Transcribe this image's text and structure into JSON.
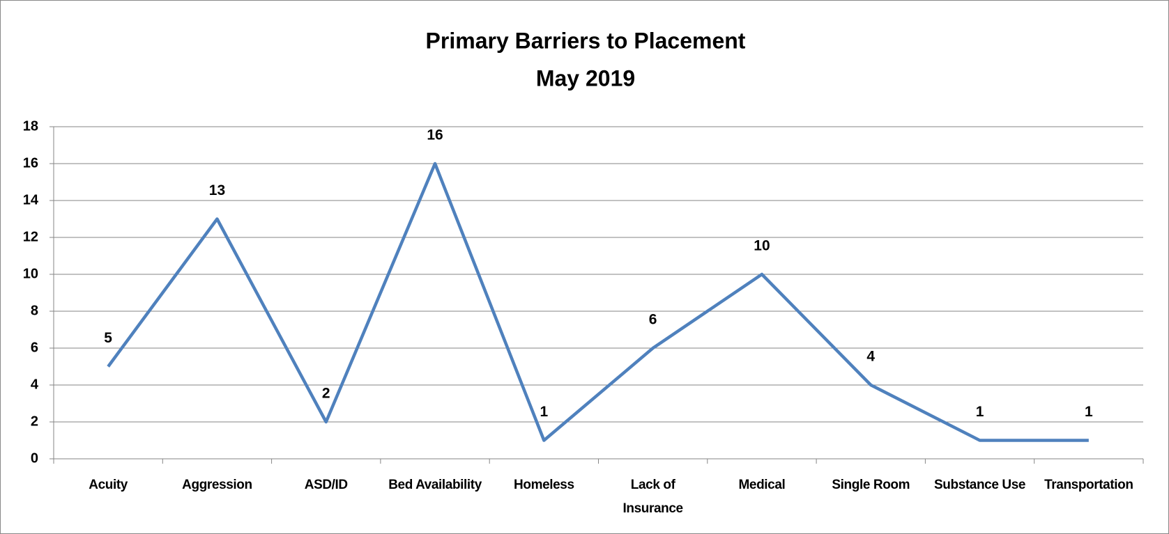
{
  "chart_data": {
    "type": "line",
    "title": "Primary Barriers to Placement",
    "subtitle": "May 2019",
    "categories": [
      "Acuity",
      "Aggression",
      "ASD/ID",
      "Bed Availability",
      "Homeless",
      "Lack of Insurance",
      "Medical",
      "Single Room",
      "Substance Use",
      "Transportation"
    ],
    "values": [
      5,
      13,
      2,
      16,
      1,
      6,
      10,
      4,
      1,
      1
    ],
    "color": "#4f81bd",
    "ylim": [
      0,
      18
    ],
    "yticks": [
      0,
      2,
      4,
      6,
      8,
      10,
      12,
      14,
      16,
      18
    ],
    "grid": true
  }
}
